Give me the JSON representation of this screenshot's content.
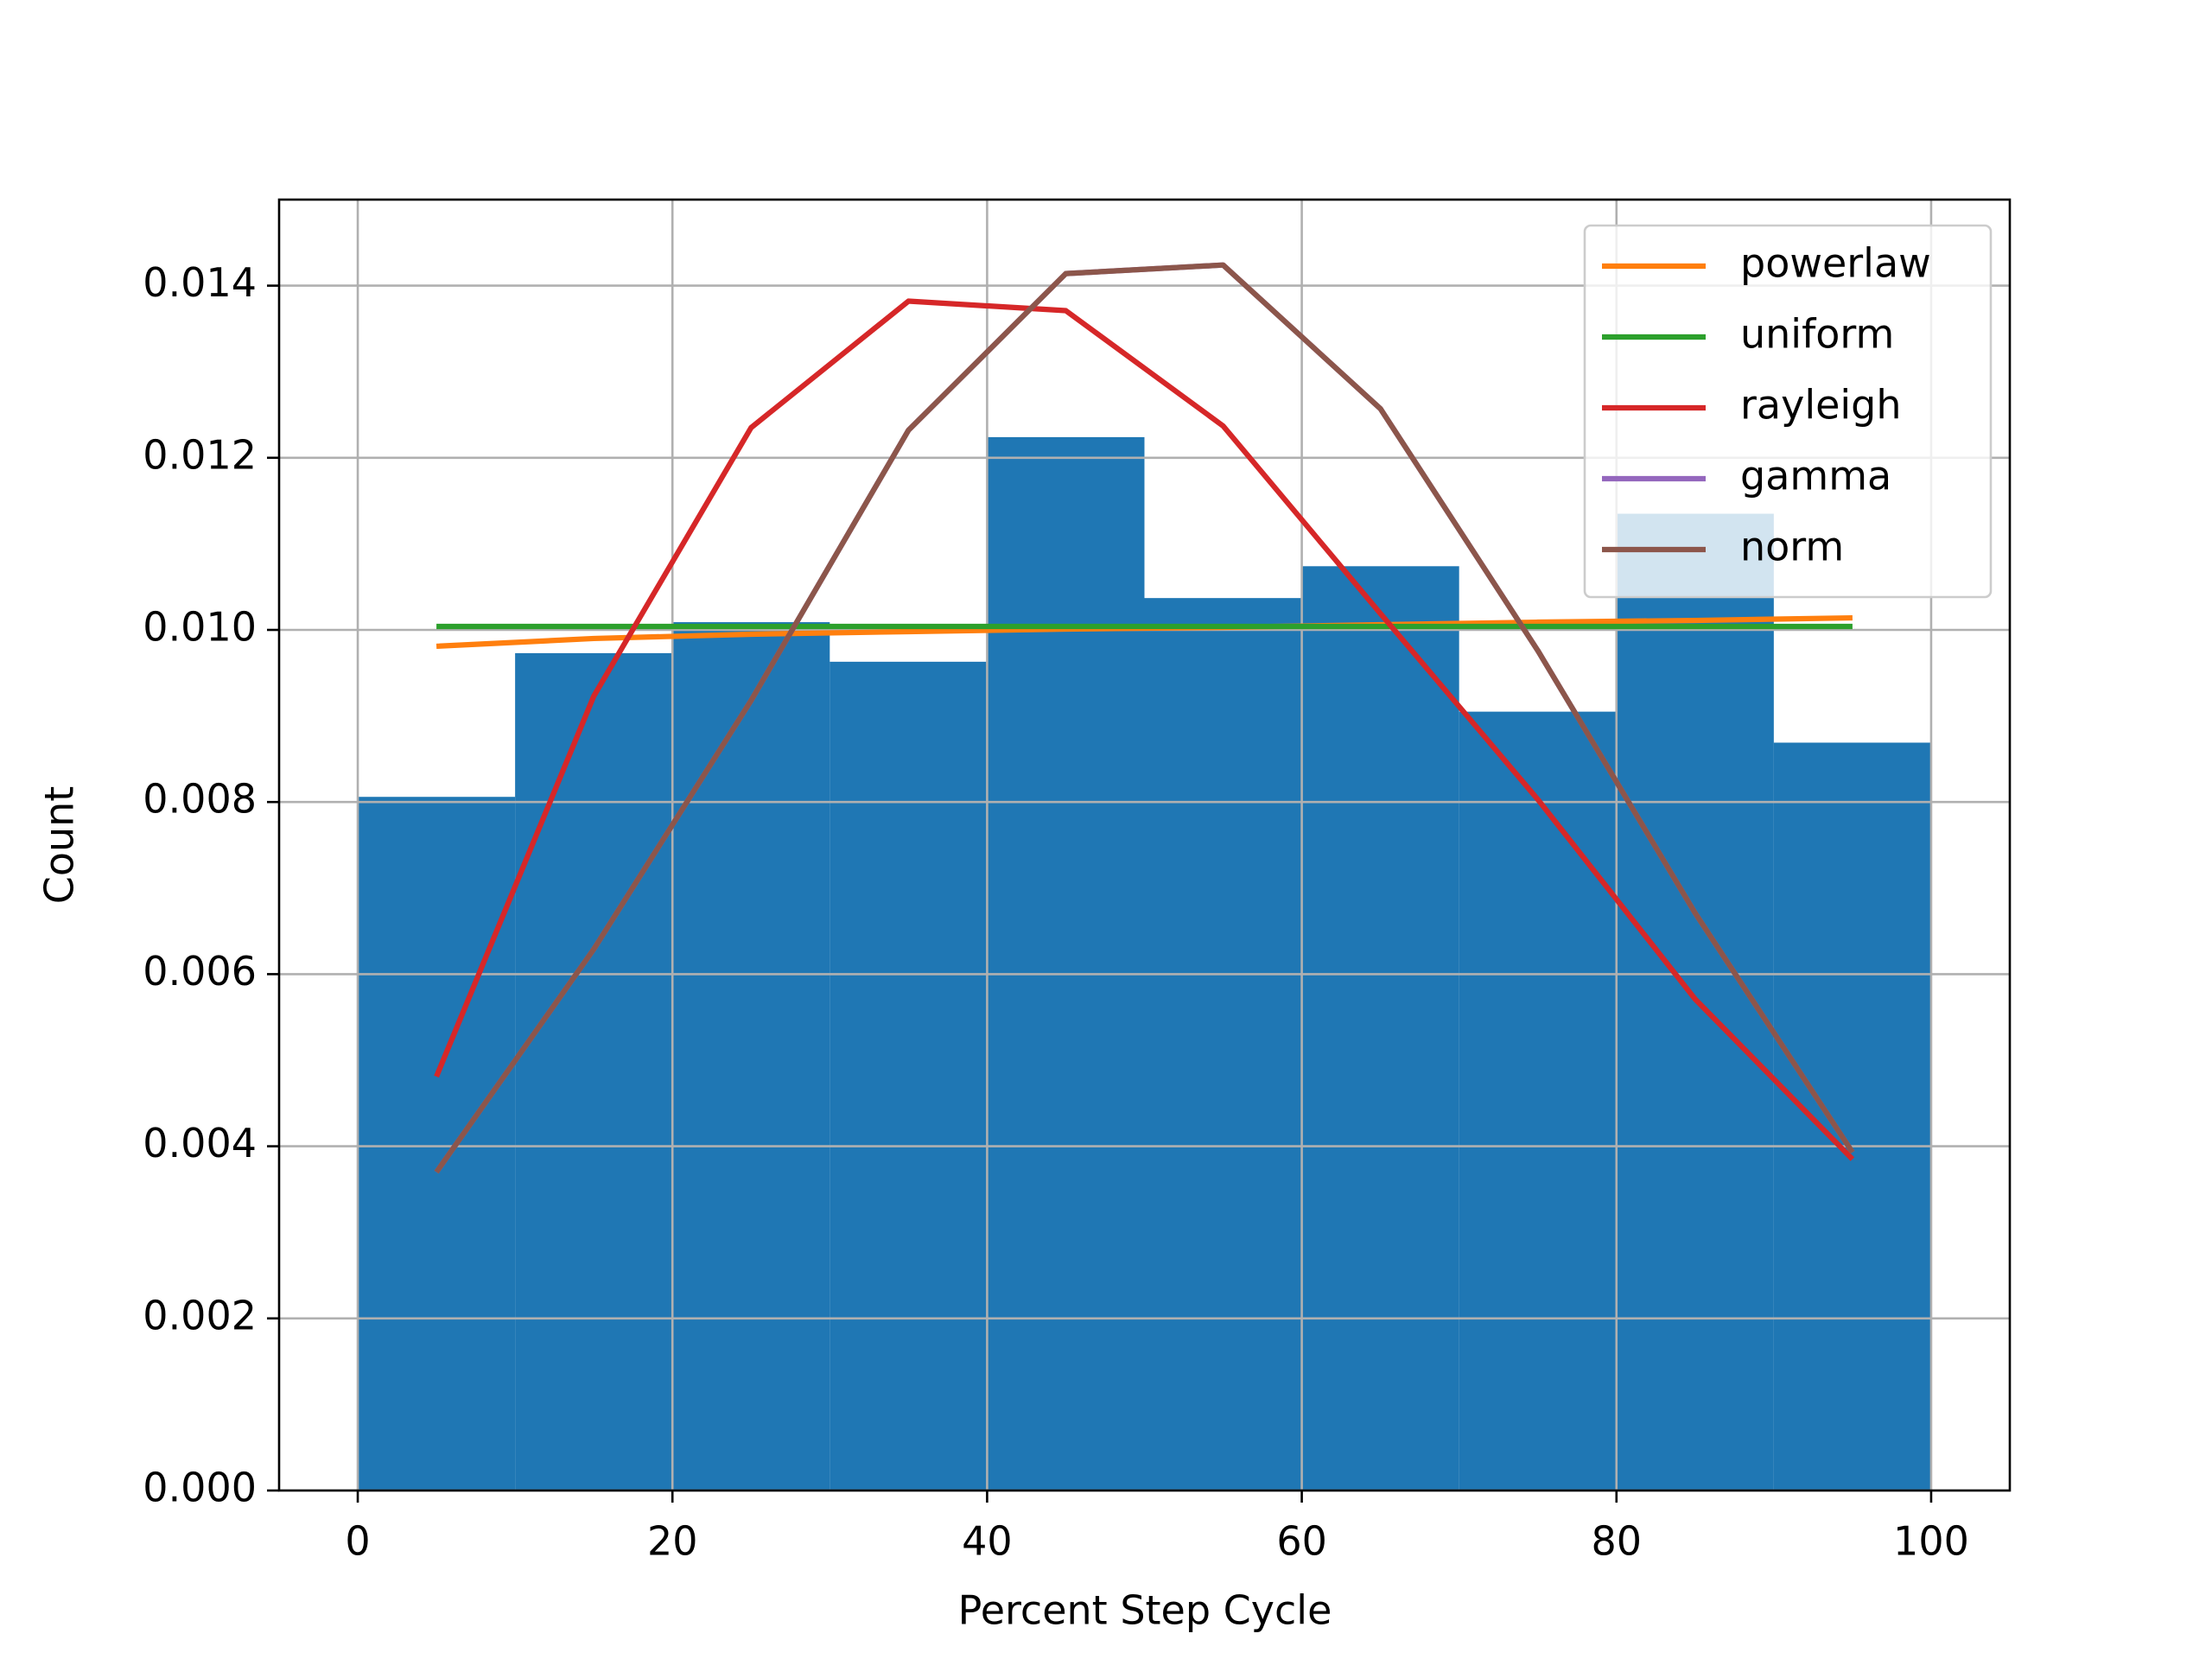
{
  "chart_data": {
    "type": "histogram",
    "xlabel": "Percent Step Cycle",
    "ylabel": "Count",
    "bins": [
      0,
      10,
      20,
      30,
      40,
      50,
      60,
      70,
      80,
      90,
      100
    ],
    "counts": [
      0.00806,
      0.00973,
      0.01009,
      0.00963,
      0.01224,
      0.01037,
      0.01074,
      0.00905,
      0.01135,
      0.00869
    ],
    "color": "#1f77b4",
    "x": [
      5,
      15,
      25,
      35,
      45,
      55,
      65,
      75,
      85,
      95
    ],
    "series": [
      {
        "name": "powerlaw",
        "color": "#ff7f0e",
        "values": [
          0.00981,
          0.0099,
          0.00995,
          0.00998,
          0.01001,
          0.01003,
          0.01006,
          0.01009,
          0.01011,
          0.01014
        ]
      },
      {
        "name": "uniform",
        "color": "#2ca02c",
        "values": [
          0.01004,
          0.01004,
          0.01004,
          0.01004,
          0.01004,
          0.01004,
          0.01004,
          0.01004,
          0.01004,
          0.01004
        ]
      },
      {
        "name": "rayleigh",
        "color": "#d62728",
        "values": [
          0.00481,
          0.00923,
          0.01235,
          0.01382,
          0.01371,
          0.01237,
          0.01019,
          0.00803,
          0.00571,
          0.00385
        ]
      },
      {
        "name": "gamma",
        "color": "#9467bd",
        "values": [
          0.0037,
          0.00629,
          0.00918,
          0.01232,
          0.01414,
          0.01424,
          0.01257,
          0.00976,
          0.00671,
          0.00393
        ]
      },
      {
        "name": "norm",
        "color": "#8c564b",
        "values": [
          0.0037,
          0.00629,
          0.00918,
          0.01232,
          0.01414,
          0.01424,
          0.01257,
          0.00976,
          0.00671,
          0.00393
        ]
      }
    ],
    "xlim": [
      -5,
      105
    ],
    "ylim": [
      0,
      0.015
    ],
    "xticks": [
      0,
      20,
      40,
      60,
      80,
      100
    ],
    "yticks": [
      {
        "value": 0,
        "label": "0.000"
      },
      {
        "value": 0.002,
        "label": "0.002"
      },
      {
        "value": 0.004,
        "label": "0.004"
      },
      {
        "value": 0.006,
        "label": "0.006"
      },
      {
        "value": 0.008,
        "label": "0.008"
      },
      {
        "value": 0.01,
        "label": "0.010"
      },
      {
        "value": 0.012,
        "label": "0.012"
      },
      {
        "value": 0.014,
        "label": "0.014"
      }
    ],
    "grid": true,
    "legend": "upper right"
  }
}
